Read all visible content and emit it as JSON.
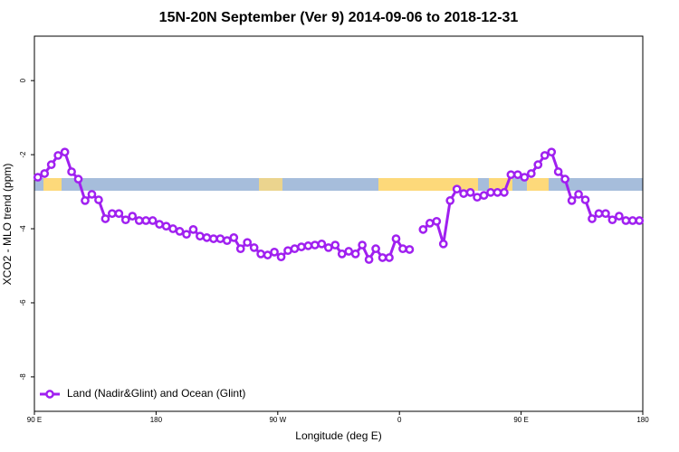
{
  "chart_data": {
    "type": "line",
    "title": "15N-20N September (Ver 9)   2014-09-06 to 2018-12-31",
    "x_label": "Longitude (deg E)",
    "y_label": "XCO2 - MLO trend (ppm)",
    "x": [
      92.5,
      97.5,
      102.5,
      107.5,
      112.5,
      117.5,
      122.5,
      127.5,
      132.5,
      137.5,
      142.5,
      147.5,
      152.5,
      157.5,
      162.5,
      167.5,
      172.5,
      177.5,
      182.5,
      187.5,
      192.5,
      197.5,
      202.5,
      207.5,
      212.5,
      217.5,
      222.5,
      227.5,
      232.5,
      237.5,
      242.5,
      247.5,
      252.5,
      257.5,
      262.5,
      267.5,
      272.5,
      277.5,
      282.5,
      287.5,
      292.5,
      297.5,
      302.5,
      307.5,
      312.5,
      317.5,
      322.5,
      327.5,
      332.5,
      337.5,
      342.5,
      347.5,
      352.5,
      357.5,
      362.5,
      367.5,
      372.5,
      377.5,
      382.5,
      387.5,
      392.5,
      397.5,
      402.5,
      407.5,
      412.5,
      417.5,
      422.5,
      427.5,
      432.5,
      437.5,
      442.5,
      447.5,
      452.5,
      457.5,
      462.5,
      467.5,
      472.5,
      477.5,
      482.5,
      487.5,
      492.5,
      497.5,
      502.5,
      507.5,
      512.5,
      517.5,
      522.5,
      527.5,
      532.5,
      537.5
    ],
    "series": [
      {
        "name": "Land (Nadir&Glint) and Ocean (Glint)",
        "color": "#a020f0",
        "values": [
          -2.61,
          -2.51,
          -2.27,
          -2.02,
          -1.93,
          -2.46,
          -2.66,
          -3.24,
          -3.07,
          -3.22,
          -3.73,
          -3.59,
          -3.59,
          -3.76,
          -3.66,
          -3.78,
          -3.78,
          -3.78,
          -3.88,
          -3.93,
          -4.0,
          -4.07,
          -4.15,
          -4.02,
          -4.2,
          -4.24,
          -4.27,
          -4.27,
          -4.32,
          -4.24,
          -4.54,
          -4.37,
          -4.51,
          -4.68,
          -4.71,
          -4.63,
          -4.76,
          -4.59,
          -4.54,
          -4.49,
          -4.46,
          -4.44,
          -4.41,
          -4.51,
          -4.44,
          -4.68,
          -4.61,
          -4.68,
          -4.44,
          -4.83,
          -4.54,
          -4.78,
          -4.78,
          -4.27,
          -4.54,
          -4.56,
          null,
          -4.02,
          -3.85,
          -3.8,
          -4.41,
          -3.24,
          -2.93,
          -3.05,
          -3.02,
          -3.15,
          -3.1,
          -3.02,
          -3.02,
          -3.02,
          -2.54,
          -2.54,
          -2.61,
          -2.51,
          -2.27,
          -2.02,
          -1.93,
          -2.46,
          -2.66,
          -3.24,
          -3.07,
          -3.22,
          -3.73,
          -3.59,
          -3.59,
          -3.76,
          -3.66,
          -3.78,
          -3.78,
          -3.78
        ]
      }
    ],
    "xlim": [
      90,
      540
    ],
    "xticks": [
      {
        "value": 90,
        "label": "90 E"
      },
      180,
      {
        "value": 270,
        "label": "90 W"
      },
      {
        "value": 360,
        "label": "0"
      },
      {
        "value": 450,
        "label": "90 E"
      },
      {
        "value": 540,
        "label": "180"
      }
    ],
    "ylim": [
      -8.93,
      1.2
    ],
    "yticks": [
      0,
      -2,
      -4,
      -6,
      -8
    ],
    "legend": "bottom-left"
  }
}
